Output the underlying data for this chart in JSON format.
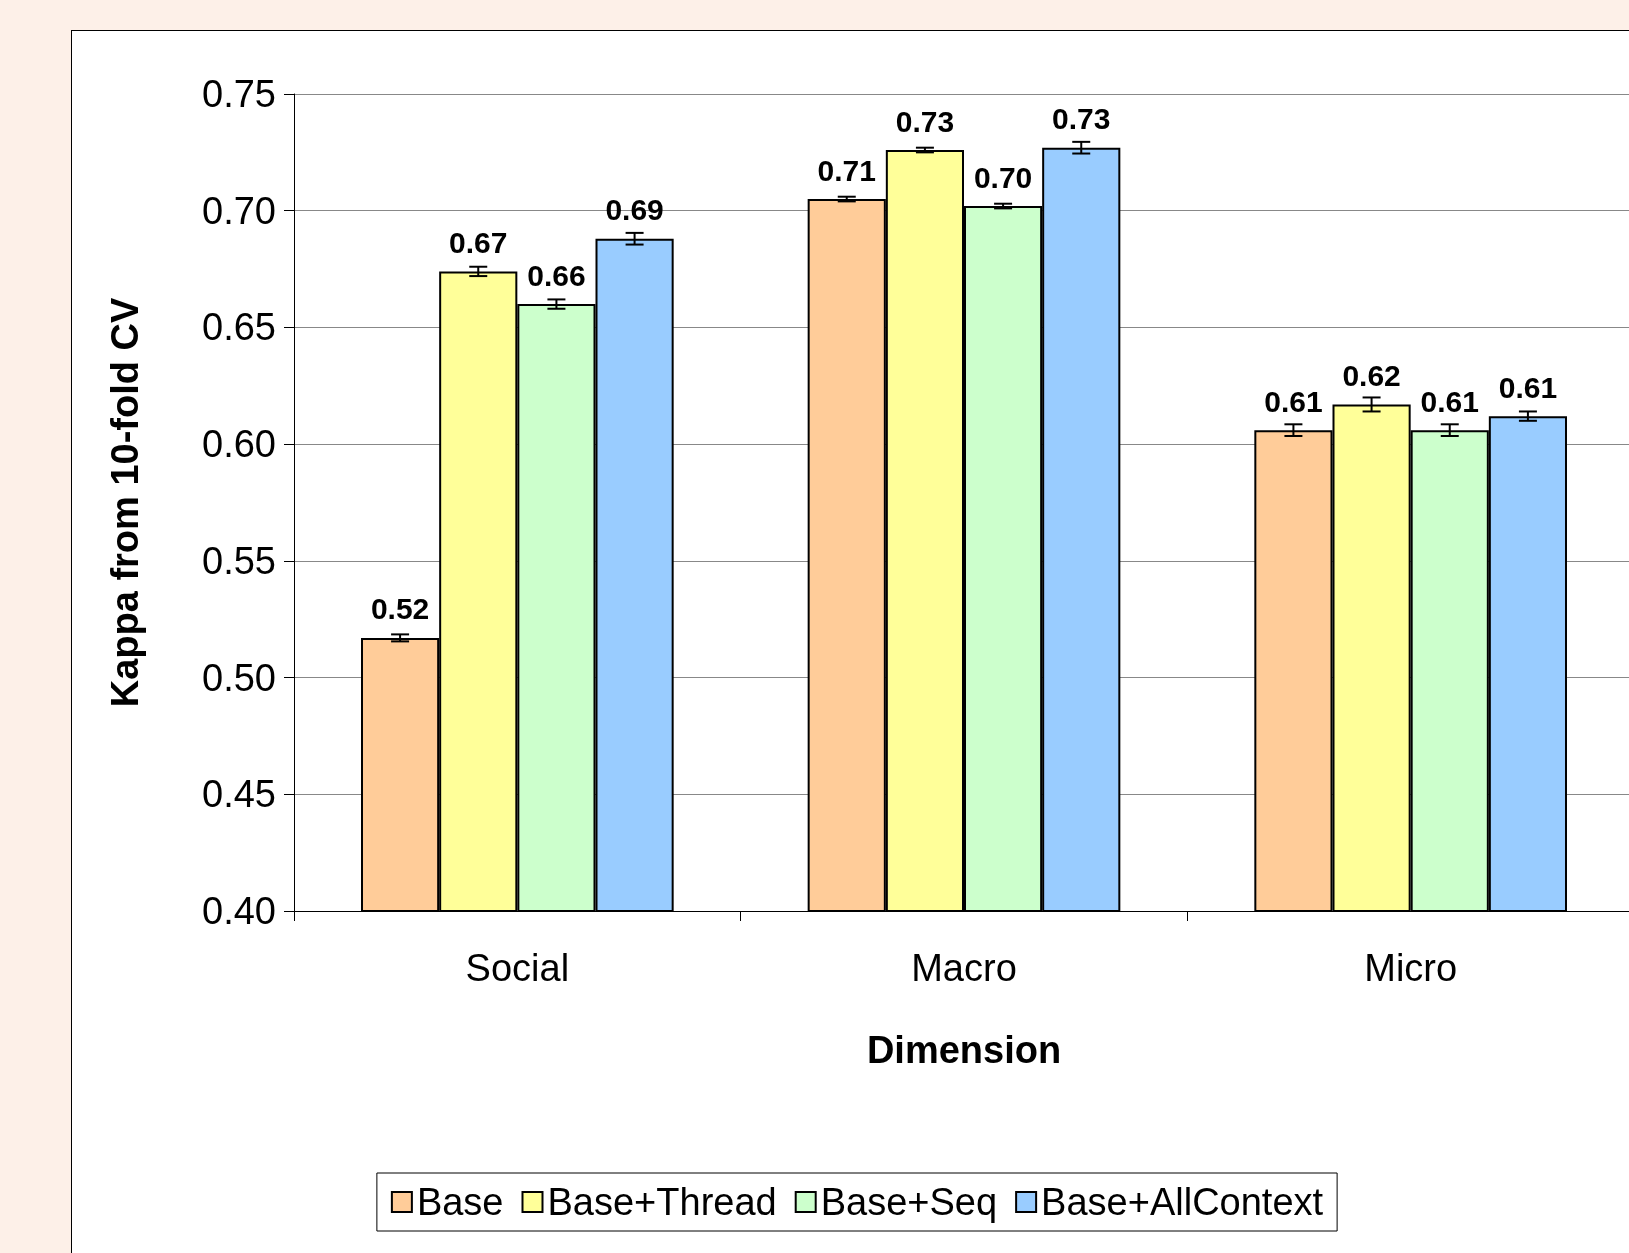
{
  "chart_data": {
    "type": "bar",
    "xlabel": "Dimension",
    "ylabel": "Kappa from 10-fold CV",
    "categories": [
      "Social",
      "Macro",
      "Micro"
    ],
    "series": [
      {
        "name": "Base",
        "color": "#ffcc99",
        "values": [
          0.517,
          0.705,
          0.606
        ],
        "errors": [
          0.0015,
          0.001,
          0.0025
        ],
        "value_labels": [
          "0.52",
          "0.71",
          "0.61"
        ]
      },
      {
        "name": "Base+Thread",
        "color": "#ffff99",
        "values": [
          0.674,
          0.726,
          0.617
        ],
        "errors": [
          0.002,
          0.001,
          0.003
        ],
        "value_labels": [
          "0.67",
          "0.73",
          "0.62"
        ]
      },
      {
        "name": "Base+Seq",
        "color": "#ccffcc",
        "values": [
          0.66,
          0.702,
          0.606
        ],
        "errors": [
          0.002,
          0.001,
          0.0025
        ],
        "value_labels": [
          "0.66",
          "0.70",
          "0.61"
        ]
      },
      {
        "name": "Base+AllContext",
        "color": "#99ccff",
        "values": [
          0.688,
          0.727,
          0.612
        ],
        "errors": [
          0.0025,
          0.0025,
          0.002
        ],
        "value_labels": [
          "0.69",
          "0.73",
          "0.61"
        ]
      }
    ],
    "ylim": [
      0.4,
      0.75
    ],
    "yticks": [
      {
        "value": 0.4,
        "label": "0.40"
      },
      0.45,
      {
        "value": 0.5,
        "label": "0.50"
      },
      0.55,
      {
        "value": 0.6,
        "label": "0.60"
      },
      0.65,
      {
        "value": 0.7,
        "label": "0.70"
      },
      0.75
    ],
    "grid": "y",
    "legend": "bottom"
  }
}
